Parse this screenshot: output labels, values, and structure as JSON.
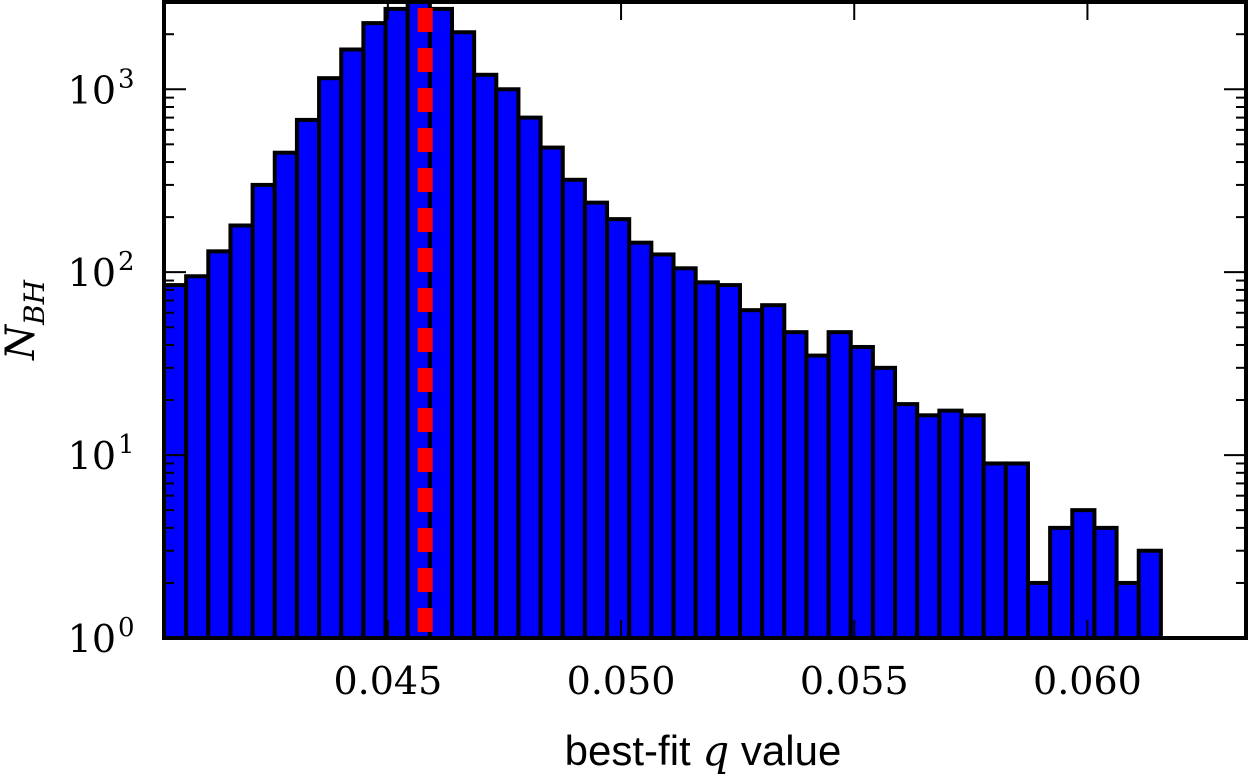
{
  "chart_data": {
    "type": "bar",
    "title": "",
    "xlabel": {
      "prefix": "best-fit ",
      "var": "q",
      "suffix": " value"
    },
    "ylabel": {
      "base": "N",
      "sub": "BH"
    },
    "y_scale": "log",
    "xlim": [
      0.0402,
      0.0634
    ],
    "ylim": [
      1,
      3000
    ],
    "bin_start": 0.0402,
    "bin_width": 0.000475,
    "values": [
      85,
      95,
      130,
      180,
      300,
      450,
      680,
      1150,
      1650,
      2300,
      2750,
      3000,
      2750,
      2050,
      1200,
      1000,
      700,
      480,
      320,
      240,
      195,
      145,
      125,
      105,
      88,
      85,
      62,
      66,
      47,
      35,
      47,
      39,
      30,
      19,
      16.5,
      17.5,
      16.5,
      9,
      9,
      2,
      4,
      5,
      4,
      2,
      3,
      1,
      1,
      1,
      1
    ],
    "bar_color": "#0000ff",
    "edge_color": "#000000",
    "reference_line": {
      "x": 0.0458,
      "color": "#ff0000",
      "style": "dashed"
    },
    "x_ticks": [
      {
        "value": 0.045,
        "label": "0.045"
      },
      {
        "value": 0.05,
        "label": "0.050"
      },
      {
        "value": 0.055,
        "label": "0.055"
      },
      {
        "value": 0.06,
        "label": "0.060"
      }
    ],
    "y_ticks": [
      {
        "value": 1,
        "base": "10",
        "exp": "0"
      },
      {
        "value": 10,
        "base": "10",
        "exp": "1"
      },
      {
        "value": 100,
        "base": "10",
        "exp": "2"
      },
      {
        "value": 1000,
        "base": "10",
        "exp": "3"
      }
    ],
    "grid": false,
    "legend": "none"
  }
}
